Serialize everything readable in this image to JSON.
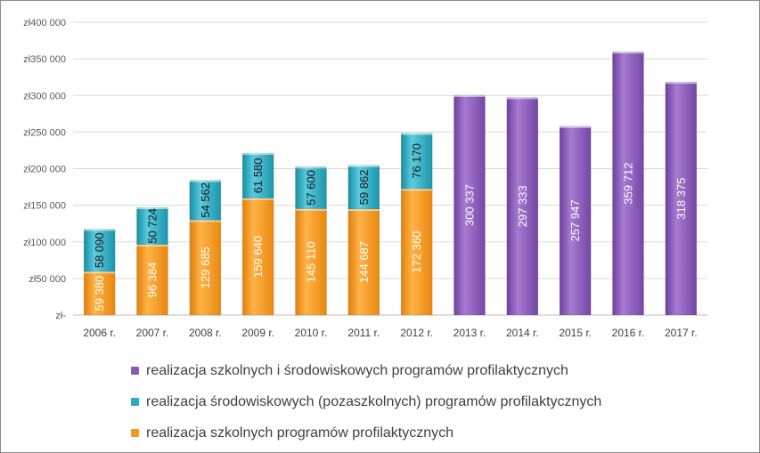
{
  "chart_data": {
    "type": "bar",
    "stacked": true,
    "categories": [
      "2006 r.",
      "2007 r.",
      "2008 r.",
      "2009 r.",
      "2010 r.",
      "2011 r.",
      "2012 r.",
      "2013 r.",
      "2014 r.",
      "2015 r.",
      "2016 r.",
      "2017 r."
    ],
    "ylim": [
      0,
      400000
    ],
    "yticks": [
      {
        "value": 0,
        "label": "zł-"
      },
      {
        "value": 50000,
        "label": "zł50 000"
      },
      {
        "value": 100000,
        "label": "zł100 000"
      },
      {
        "value": 150000,
        "label": "zł150 000"
      },
      {
        "value": 200000,
        "label": "zł200 000"
      },
      {
        "value": 250000,
        "label": "zł250 000"
      },
      {
        "value": 300000,
        "label": "zł300 000"
      },
      {
        "value": 350000,
        "label": "zł350 000"
      },
      {
        "value": 400000,
        "label": "zł400 000"
      }
    ],
    "grid": true,
    "legend_position": "bottom",
    "series": [
      {
        "name": "realizacja szkolnych programów profilaktycznych",
        "color": "#f59a1f",
        "values": [
          59380,
          96384,
          129685,
          159640,
          145110,
          144687,
          172360,
          null,
          null,
          null,
          null,
          null
        ],
        "labels": [
          "59 380",
          "96 384",
          "129 685",
          "159 640",
          "145 110",
          "144 687",
          "172 360",
          "",
          "",
          "",
          "",
          ""
        ]
      },
      {
        "name": "realizacja środowiskowych (pozaszkolnych) programów profilaktycznych",
        "color": "#2eaac0",
        "values": [
          58090,
          50724,
          54562,
          61580,
          57600,
          59862,
          76170,
          null,
          null,
          null,
          null,
          null
        ],
        "labels": [
          "58 090",
          "50 724",
          "54 562",
          "61 580",
          "57 600",
          "59 862",
          "76 170",
          "",
          "",
          "",
          "",
          ""
        ]
      },
      {
        "name": "realizacja szkolnych i środowiskowych programów profilaktycznych",
        "color": "#8a5bb5",
        "values": [
          null,
          null,
          null,
          null,
          null,
          null,
          null,
          300337,
          297333,
          257947,
          359712,
          318375
        ],
        "labels": [
          "",
          "",
          "",
          "",
          "",
          "",
          "",
          "300 337",
          "297 333",
          "257 947",
          "359 712",
          "318 375"
        ]
      }
    ],
    "legend_order": [
      2,
      1,
      0
    ]
  }
}
